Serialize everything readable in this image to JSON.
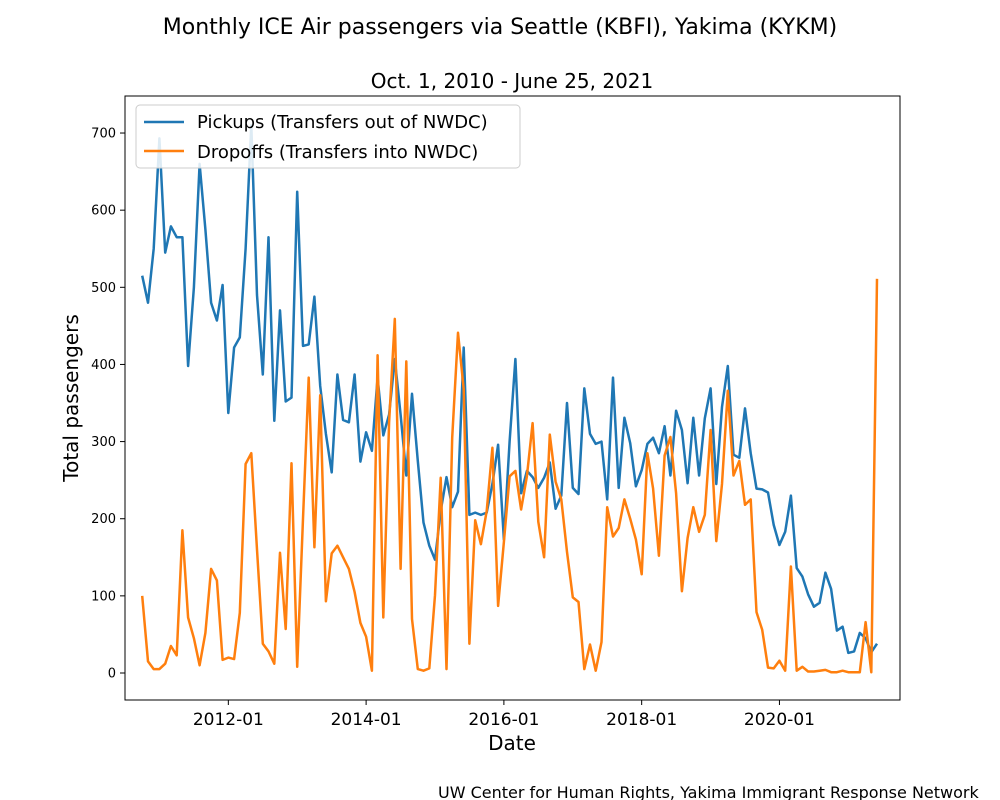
{
  "chart_data": {
    "type": "line",
    "title": "Monthly ICE Air passengers via Seattle (KBFI), Yakima (KYKM)",
    "subtitle": "Oct. 1, 2010 - June 25, 2021",
    "xlabel": "Date",
    "ylabel": "Total passengers",
    "credit": "UW Center for Human Rights, Yakima Immigrant Response Network",
    "x_start": "2010-10",
    "x_ticks": [
      "2012-01",
      "2014-01",
      "2016-01",
      "2018-01",
      "2020-01"
    ],
    "xlim": [
      "2010-07",
      "2021-10"
    ],
    "ylim": [
      -35,
      748
    ],
    "y_ticks": [
      0,
      100,
      200,
      300,
      400,
      500,
      600,
      700
    ],
    "grid": false,
    "legend_position": "upper-left",
    "series": [
      {
        "name": "Pickups (Transfers out of NWDC)",
        "color": "#1f77b4",
        "values": [
          515,
          480,
          550,
          693,
          545,
          579,
          565,
          565,
          398,
          500,
          660,
          575,
          480,
          457,
          503,
          337,
          422,
          435,
          550,
          710,
          490,
          387,
          565,
          327,
          470,
          352,
          357,
          624,
          424,
          426,
          488,
          372,
          310,
          260,
          387,
          328,
          325,
          387,
          274,
          312,
          288,
          383,
          308,
          335,
          407,
          335,
          256,
          362,
          275,
          195,
          165,
          147,
          210,
          254,
          215,
          235,
          422,
          205,
          208,
          205,
          208,
          245,
          296,
          173,
          300,
          407,
          233,
          262,
          254,
          240,
          253,
          273,
          213,
          230,
          350,
          240,
          232,
          369,
          310,
          297,
          300,
          225,
          383,
          240,
          331,
          298,
          242,
          263,
          297,
          305,
          285,
          320,
          256,
          340,
          315,
          246,
          331,
          256,
          330,
          369,
          245,
          345,
          398,
          283,
          279,
          343,
          285,
          239,
          238,
          234,
          192,
          166,
          183,
          230,
          136,
          125,
          102,
          86,
          91,
          130,
          109,
          55,
          60,
          26,
          28,
          52,
          45,
          27,
          38
        ]
      },
      {
        "name": "Dropoffs (Transfers into NWDC)",
        "color": "#ff7f0e",
        "values": [
          100,
          15,
          5,
          5,
          12,
          35,
          23,
          185,
          72,
          45,
          10,
          52,
          135,
          120,
          17,
          20,
          18,
          78,
          271,
          285,
          160,
          38,
          28,
          12,
          156,
          57,
          272,
          8,
          200,
          383,
          163,
          360,
          93,
          155,
          165,
          150,
          135,
          105,
          65,
          47,
          3,
          412,
          72,
          325,
          459,
          135,
          404,
          70,
          5,
          3,
          6,
          101,
          253,
          5,
          305,
          441,
          368,
          38,
          198,
          167,
          210,
          292,
          87,
          170,
          255,
          262,
          212,
          255,
          324,
          196,
          150,
          309,
          248,
          225,
          157,
          98,
          92,
          5,
          37,
          3,
          40,
          215,
          177,
          188,
          225,
          200,
          173,
          128,
          285,
          239,
          152,
          282,
          306,
          233,
          106,
          175,
          215,
          183,
          205,
          315,
          171,
          245,
          366,
          256,
          275,
          218,
          225,
          79,
          56,
          7,
          6,
          16,
          3,
          138,
          3,
          8,
          2,
          2,
          3,
          4,
          1,
          1,
          3,
          1,
          1,
          1,
          66,
          1,
          511
        ]
      }
    ]
  }
}
